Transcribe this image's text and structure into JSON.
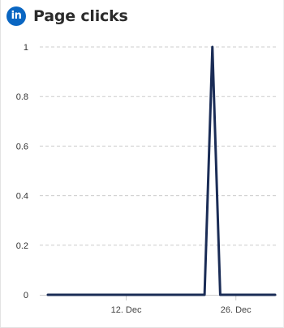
{
  "header": {
    "icon": "linkedin-icon",
    "icon_glyph": "in",
    "title": "Page clicks"
  },
  "colors": {
    "linkedin_blue": "#0a66c2",
    "line": "#1a2c56",
    "grid": "#cccccc",
    "axis": "#cccccc"
  },
  "chart_data": {
    "type": "line",
    "title": "Page clicks",
    "xlabel": "",
    "ylabel": "",
    "x_start": "2023-12-02",
    "x_end": "2023-12-31",
    "xlim": [
      "2023-12-02",
      "2023-12-31"
    ],
    "ylim": [
      0,
      1
    ],
    "yticks": [
      0,
      0.2,
      0.4,
      0.6,
      0.8,
      1
    ],
    "ytick_labels": [
      "0",
      "0.2",
      "0.4",
      "0.6",
      "0.8",
      "1"
    ],
    "xticks": [
      "2023-12-12",
      "2023-12-26"
    ],
    "xtick_labels": [
      "12. Dec",
      "26. Dec"
    ],
    "grid": true,
    "legend": "none",
    "series": [
      {
        "x": [
          "2023-12-02",
          "2023-12-03",
          "2023-12-04",
          "2023-12-05",
          "2023-12-06",
          "2023-12-07",
          "2023-12-08",
          "2023-12-09",
          "2023-12-10",
          "2023-12-11",
          "2023-12-12",
          "2023-12-13",
          "2023-12-14",
          "2023-12-15",
          "2023-12-16",
          "2023-12-17",
          "2023-12-18",
          "2023-12-19",
          "2023-12-20",
          "2023-12-21",
          "2023-12-22",
          "2023-12-23",
          "2023-12-24",
          "2023-12-25",
          "2023-12-26",
          "2023-12-27",
          "2023-12-28",
          "2023-12-29",
          "2023-12-30",
          "2023-12-31"
        ],
        "values": [
          0,
          0,
          0,
          0,
          0,
          0,
          0,
          0,
          0,
          0,
          0,
          0,
          0,
          0,
          0,
          0,
          0,
          0,
          0,
          0,
          0,
          1,
          0,
          0,
          0,
          0,
          0,
          0,
          0,
          0
        ]
      }
    ]
  }
}
